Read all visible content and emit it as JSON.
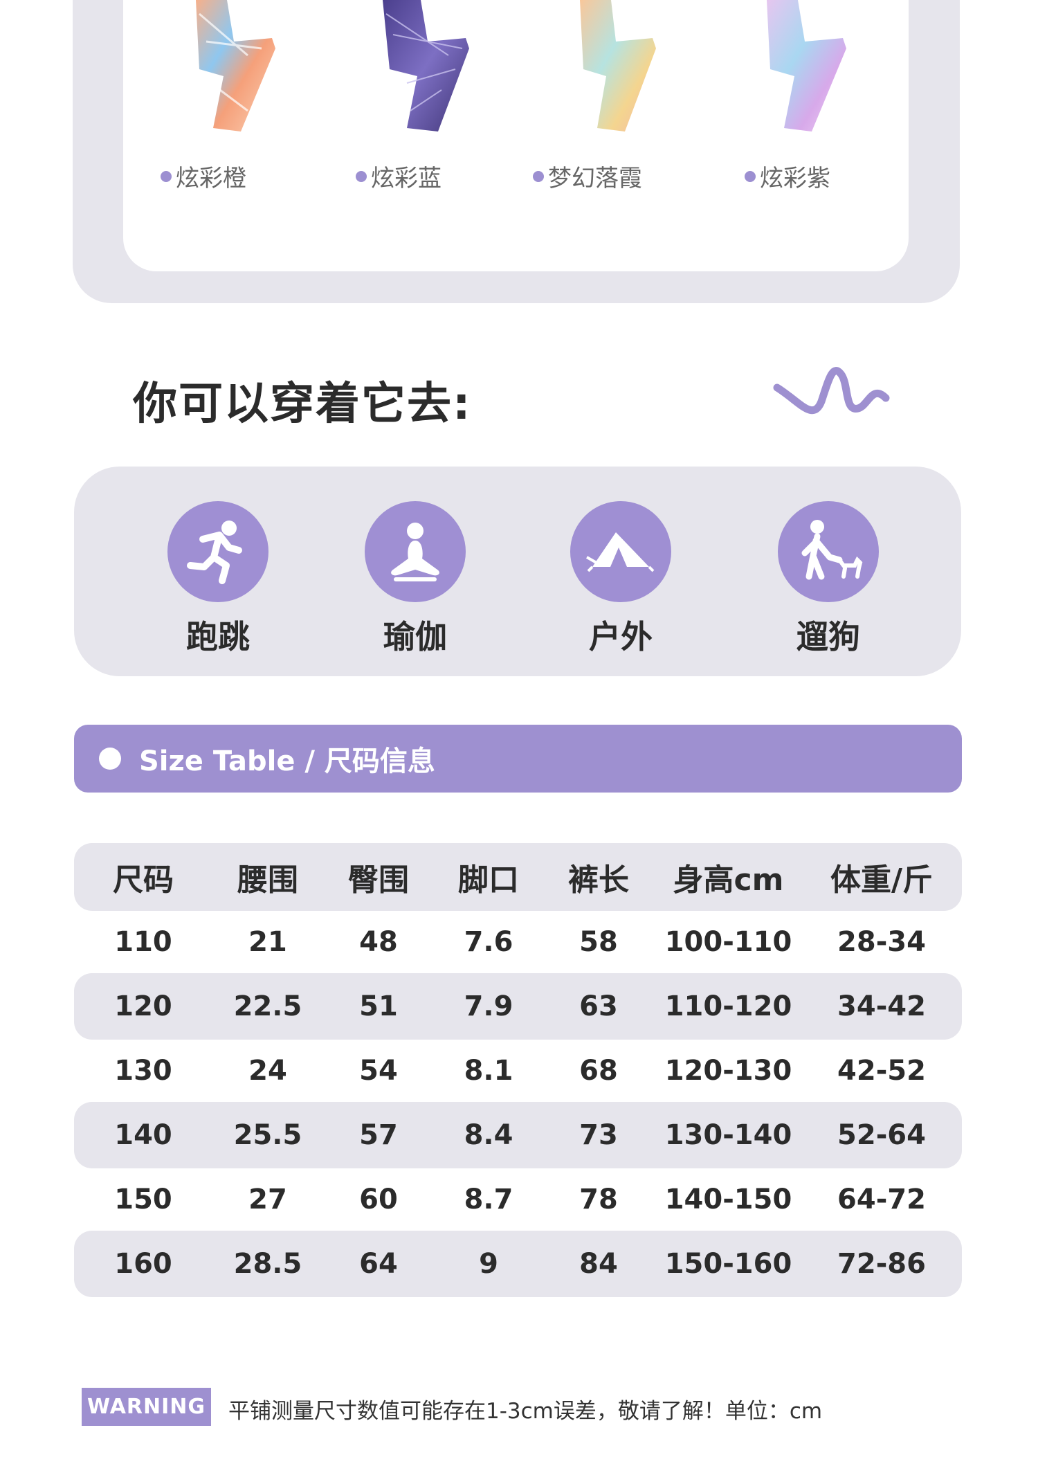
{
  "colors": {
    "accent": "#9e90d0",
    "panel": "#e6e5ec",
    "text": "#2b2b2b"
  },
  "swatches": [
    {
      "label": "炫彩橙"
    },
    {
      "label": "炫彩蓝"
    },
    {
      "label": "梦幻落霞"
    },
    {
      "label": "炫彩紫"
    }
  ],
  "heading": "你可以穿着它去:",
  "activities": [
    {
      "label": "跑跳",
      "icon": "running-icon"
    },
    {
      "label": "瑜伽",
      "icon": "yoga-icon"
    },
    {
      "label": "户外",
      "icon": "tent-icon"
    },
    {
      "label": "遛狗",
      "icon": "dog-walking-icon"
    }
  ],
  "size_table": {
    "title": "Size Table / 尺码信息",
    "headers": [
      "尺码",
      "腰围",
      "臀围",
      "脚口",
      "裤长",
      "身高cm",
      "体重/斤"
    ],
    "rows": [
      [
        "110",
        "21",
        "48",
        "7.6",
        "58",
        "100-110",
        "28-34"
      ],
      [
        "120",
        "22.5",
        "51",
        "7.9",
        "63",
        "110-120",
        "34-42"
      ],
      [
        "130",
        "24",
        "54",
        "8.1",
        "68",
        "120-130",
        "42-52"
      ],
      [
        "140",
        "25.5",
        "57",
        "8.4",
        "73",
        "130-140",
        "52-64"
      ],
      [
        "150",
        "27",
        "60",
        "8.7",
        "78",
        "140-150",
        "64-72"
      ],
      [
        "160",
        "28.5",
        "64",
        "9",
        "84",
        "150-160",
        "72-86"
      ]
    ]
  },
  "warning": {
    "badge": "WARNING",
    "text": "平铺测量尺寸数值可能存在1-3cm误差，敬请了解！单位：cm"
  }
}
